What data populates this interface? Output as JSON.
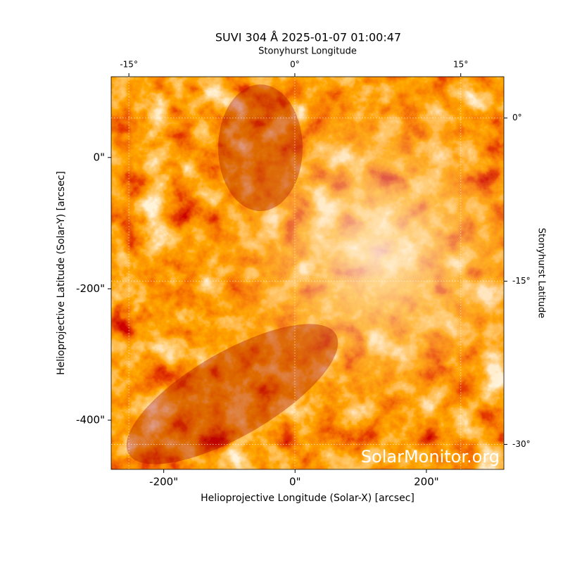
{
  "chart_data": {
    "type": "image",
    "title": "SUVI 304 Å 2025-01-07 01:00:47",
    "xlabel": "Helioprojective Longitude (Solar-X) [arcsec]",
    "ylabel": "Helioprojective Latitude (Solar-Y) [arcsec]",
    "x2label": "Stonyhurst Longitude",
    "y2label": "Stonyhurst Latitude",
    "watermark": "SolarMonitor.org",
    "xlim": [
      -280,
      318
    ],
    "ylim": [
      -475,
      123
    ],
    "xticks": [
      {
        "value": -200,
        "label": "-200\""
      },
      {
        "value": 0,
        "label": "0\""
      },
      {
        "value": 200,
        "label": "200\""
      }
    ],
    "yticks": [
      {
        "value": 0,
        "label": "0\""
      },
      {
        "value": -200,
        "label": "-200\""
      },
      {
        "value": -400,
        "label": "-400\""
      }
    ],
    "x2lim": [
      -16.6,
      18.9
    ],
    "x2ticks": [
      {
        "value": -15,
        "label": "-15°"
      },
      {
        "value": 0,
        "label": "0°"
      },
      {
        "value": 15,
        "label": "15°"
      }
    ],
    "y2lim": [
      -32.3,
      3.8
    ],
    "y2ticks": [
      {
        "value": 0,
        "label": "0°"
      },
      {
        "value": -15,
        "label": "-15°"
      },
      {
        "value": -30,
        "label": "-30°"
      }
    ],
    "grid": true
  }
}
